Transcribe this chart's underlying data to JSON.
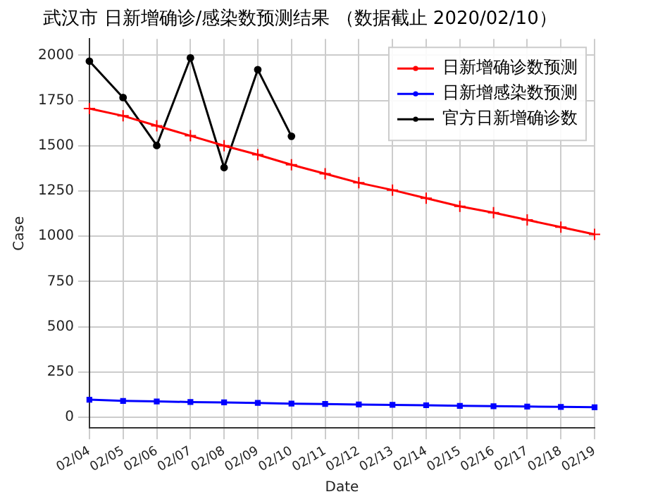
{
  "chart_data": {
    "type": "line",
    "title": "武汉市 日新增确诊/感染数预测结果 （数据截止 2020/02/10）",
    "xlabel": "Date",
    "ylabel": "Case",
    "categories": [
      "02/04",
      "02/05",
      "02/06",
      "02/07",
      "02/08",
      "02/09",
      "02/10",
      "02/11",
      "02/12",
      "02/13",
      "02/14",
      "02/15",
      "02/16",
      "02/17",
      "02/18",
      "02/19"
    ],
    "series": [
      {
        "name": "日新增确诊数预测",
        "color": "#ff0000",
        "marker": "cross",
        "values": [
          1705,
          1665,
          1610,
          1555,
          1500,
          1450,
          1395,
          1345,
          1295,
          1255,
          1210,
          1165,
          1130,
          1090,
          1050,
          1010
        ]
      },
      {
        "name": "日新增感染数预测",
        "color": "#0000ff",
        "marker": "square",
        "values": [
          97,
          90,
          87,
          84,
          82,
          79,
          75,
          73,
          70,
          68,
          66,
          63,
          61,
          59,
          57,
          55
        ]
      },
      {
        "name": "官方日新增确诊数",
        "color": "#000000",
        "marker": "circle",
        "values": [
          1967,
          1766,
          1501,
          1985,
          1379,
          1920,
          1552,
          null,
          null,
          null,
          null,
          null,
          null,
          null,
          null,
          null
        ]
      }
    ],
    "ylim": [
      -60,
      2090
    ],
    "yticks": [
      0,
      250,
      500,
      750,
      1000,
      1250,
      1500,
      1750,
      2000
    ],
    "grid": true,
    "legend": "top right",
    "line_style": "solid"
  }
}
